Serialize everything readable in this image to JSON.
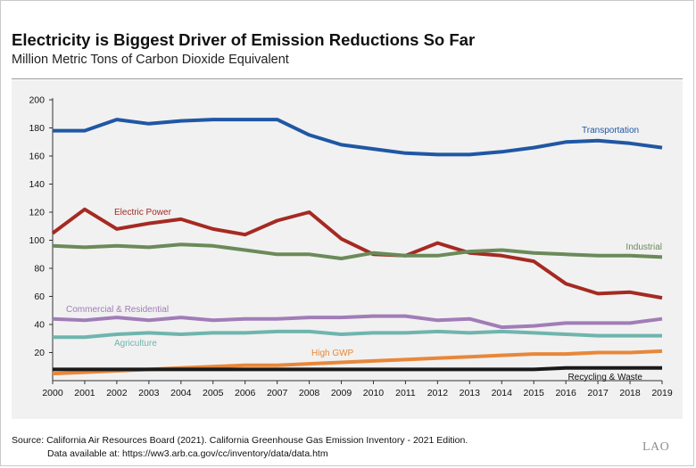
{
  "title": "Electricity is Biggest Driver of Emission Reductions So Far",
  "subtitle": "Million Metric Tons of Carbon Dioxide Equivalent",
  "source_line1": "Source: California Air Resources Board (2021). California Greenhouse Gas Emission Inventory - 2021 Edition.",
  "source_line2": "Data available at: https://ww3.arb.ca.gov/cc/inventory/data/data.htm",
  "logo": "LAO",
  "chart_data": {
    "type": "line",
    "title": "Electricity is Biggest Driver of Emission Reductions So Far",
    "subtitle": "Million Metric Tons of Carbon Dioxide Equivalent",
    "xlabel": "",
    "ylabel": "",
    "x": [
      2000,
      2001,
      2002,
      2003,
      2004,
      2005,
      2006,
      2007,
      2008,
      2009,
      2010,
      2011,
      2012,
      2013,
      2014,
      2015,
      2016,
      2017,
      2018,
      2019
    ],
    "ylim": [
      0,
      200
    ],
    "yticks": [
      20,
      40,
      60,
      80,
      100,
      120,
      140,
      160,
      180,
      200
    ],
    "grid": false,
    "legend": "inline labels",
    "series": [
      {
        "name": "Transportation",
        "color": "#1f57a4",
        "values": [
          178,
          178,
          186,
          183,
          185,
          186,
          186,
          186,
          175,
          168,
          165,
          162,
          161,
          161,
          163,
          166,
          170,
          171,
          169,
          166
        ]
      },
      {
        "name": "Electric Power",
        "color": "#a52a22",
        "values": [
          105,
          122,
          108,
          112,
          115,
          108,
          104,
          114,
          120,
          101,
          90,
          89,
          98,
          91,
          89,
          85,
          69,
          62,
          63,
          59
        ]
      },
      {
        "name": "Industrial",
        "color": "#6b8a59",
        "values": [
          96,
          95,
          96,
          95,
          97,
          96,
          93,
          90,
          90,
          87,
          91,
          89,
          89,
          92,
          93,
          91,
          90,
          89,
          89,
          88
        ]
      },
      {
        "name": "Commercial & Residential",
        "color": "#a17db7",
        "values": [
          44,
          43,
          45,
          43,
          45,
          43,
          44,
          44,
          45,
          45,
          46,
          46,
          43,
          44,
          38,
          39,
          41,
          41,
          41,
          44
        ]
      },
      {
        "name": "Agriculture",
        "color": "#6fb5ad",
        "values": [
          31,
          31,
          33,
          34,
          33,
          34,
          34,
          35,
          35,
          33,
          34,
          34,
          35,
          34,
          35,
          34,
          33,
          32,
          32,
          32
        ]
      },
      {
        "name": "High GWP",
        "color": "#e8873a",
        "values": [
          5,
          6,
          7,
          8,
          9,
          10,
          11,
          11,
          12,
          13,
          14,
          15,
          16,
          17,
          18,
          19,
          19,
          20,
          20,
          21
        ]
      },
      {
        "name": "Recycling & Waste",
        "color": "#1a1a1a",
        "values": [
          8,
          8,
          8,
          8,
          8,
          8,
          8,
          8,
          8,
          8,
          8,
          8,
          8,
          8,
          8,
          8,
          9,
          9,
          9,
          9
        ]
      }
    ]
  }
}
